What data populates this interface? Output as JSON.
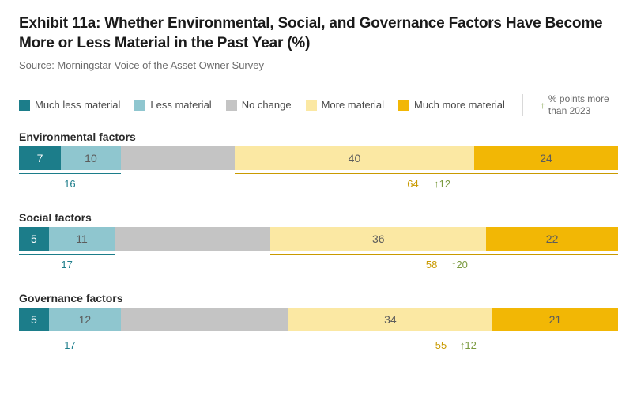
{
  "title": "Exhibit 11a: Whether Environmental, Social, and Governance Factors Have Become More or Less Material in the Past Year (%)",
  "source": "Source: Morningstar Voice of the Asset Owner Survey",
  "legend": {
    "items": [
      {
        "label": "Much less material",
        "color": "#1c7d8a"
      },
      {
        "label": "Less material",
        "color": "#8fc6cf"
      },
      {
        "label": "No change",
        "color": "#c4c4c4"
      },
      {
        "label": "More material",
        "color": "#fbe8a3"
      },
      {
        "label": "Much more material",
        "color": "#f2b705"
      }
    ],
    "delta_label_line1": "% points more",
    "delta_label_line2": "than 2023",
    "arrow_glyph": "↑",
    "arrow_color": "#7a9a3f"
  },
  "chart": {
    "type": "stacked-bar",
    "scale_total": 100,
    "text_color_dark": "#5c5c5c",
    "text_color_gold": "#c99a00",
    "text_color_white": "#ffffff",
    "delta_color": "#7a9a3f",
    "left_bracket_color": "#1c7d8a",
    "right_bracket_color": "#c99a00",
    "rows": [
      {
        "label": "Environmental factors",
        "segments": [
          {
            "value": 7,
            "color": "#1c7d8a",
            "text": "light",
            "show": true
          },
          {
            "value": 10,
            "color": "#8fc6cf",
            "text": "dark",
            "show": true
          },
          {
            "value": 19,
            "color": "#c4c4c4",
            "text": "dark",
            "show": false
          },
          {
            "value": 40,
            "color": "#fbe8a3",
            "text": "dark",
            "show": true
          },
          {
            "value": 24,
            "color": "#f2b705",
            "text": "dark",
            "show": true
          }
        ],
        "left_sum": 16,
        "right_sum": 64,
        "delta": 12
      },
      {
        "label": "Social factors",
        "segments": [
          {
            "value": 5,
            "color": "#1c7d8a",
            "text": "light",
            "show": true
          },
          {
            "value": 11,
            "color": "#8fc6cf",
            "text": "dark",
            "show": true
          },
          {
            "value": 26,
            "color": "#c4c4c4",
            "text": "dark",
            "show": false
          },
          {
            "value": 36,
            "color": "#fbe8a3",
            "text": "dark",
            "show": true
          },
          {
            "value": 22,
            "color": "#f2b705",
            "text": "dark",
            "show": true
          }
        ],
        "left_sum": 17,
        "right_sum": 58,
        "delta": 20
      },
      {
        "label": "Governance factors",
        "segments": [
          {
            "value": 5,
            "color": "#1c7d8a",
            "text": "light",
            "show": true
          },
          {
            "value": 12,
            "color": "#8fc6cf",
            "text": "dark",
            "show": true
          },
          {
            "value": 28,
            "color": "#c4c4c4",
            "text": "dark",
            "show": false
          },
          {
            "value": 34,
            "color": "#fbe8a3",
            "text": "dark",
            "show": true
          },
          {
            "value": 21,
            "color": "#f2b705",
            "text": "dark",
            "show": true
          }
        ],
        "left_sum": 17,
        "right_sum": 55,
        "delta": 12
      }
    ]
  }
}
